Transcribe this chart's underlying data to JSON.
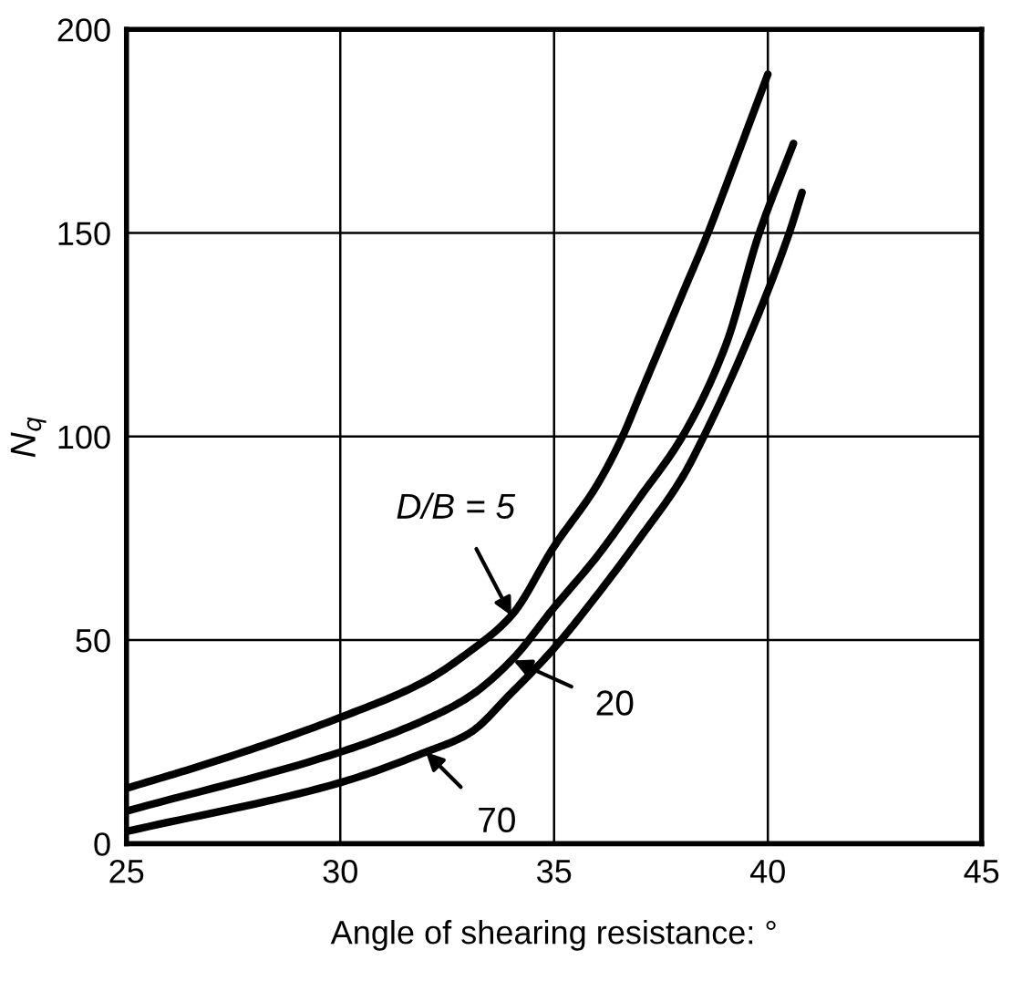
{
  "chart_data": {
    "type": "line",
    "xlabel": "Angle of shearing resistance: °",
    "ylabel": "N$_{q}$",
    "xlim": [
      25,
      45
    ],
    "xticks": [
      25,
      30,
      35,
      40,
      45
    ],
    "ylim": [
      0,
      200
    ],
    "yticks": [
      0,
      50,
      100,
      150,
      200
    ],
    "grid": true,
    "marker": "none",
    "line_style": "solid",
    "series": [
      {
        "color": "#000000",
        "x": [
          25,
          27,
          30,
          32,
          33,
          34,
          35,
          36,
          36.6,
          37,
          38,
          38.6,
          39,
          40
        ],
        "values": [
          13.6,
          20,
          31,
          40,
          47,
          56,
          73,
          88,
          100,
          110,
          135,
          150,
          161,
          189
        ]
      },
      {
        "color": "#000000",
        "x": [
          25,
          30,
          32,
          33,
          34,
          35,
          36,
          37,
          38,
          39,
          39.8,
          40.6
        ],
        "values": [
          8,
          22.5,
          30.5,
          36,
          45,
          58,
          70.5,
          85,
          100,
          122,
          150,
          172
        ]
      },
      {
        "color": "#000000",
        "x": [
          25,
          30,
          32,
          33,
          34,
          35,
          36,
          37,
          38,
          38.5,
          39.5,
          40.5,
          40.8
        ],
        "values": [
          3,
          15,
          22.5,
          27,
          37,
          48,
          61,
          75,
          90,
          100,
          123,
          150,
          160
        ]
      }
    ],
    "annotations": [
      {
        "text": "D/B = 5",
        "x": 34,
        "y": 56
      },
      {
        "text": "20",
        "x": 34.05,
        "y": 45
      },
      {
        "text": "70",
        "x": 32,
        "y": 22.5
      }
    ]
  }
}
